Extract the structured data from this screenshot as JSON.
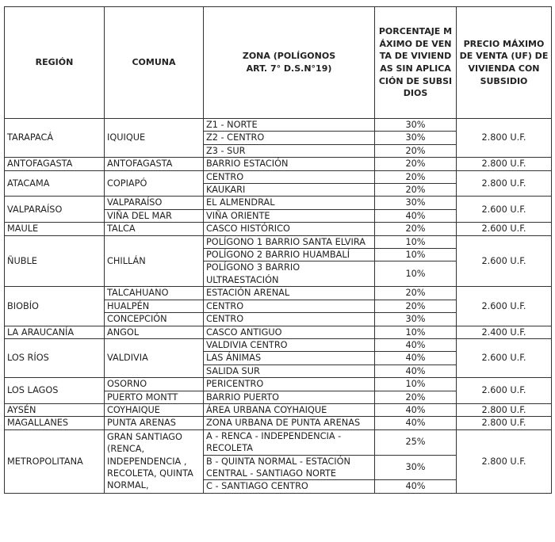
{
  "headers": {
    "region": "REGIÓN",
    "comuna": "COMUNA",
    "zona": "ZONA (POLÍGONOS ART. 7° D.S.N°19)",
    "porcentaje": "PORCENTAJE MÁXIMO DE VENTA DE VIVIENDAS SIN APLICACIÓN DE SUBSIDIOS",
    "precio": "PRECIO MÁXIMO DE VENTA (UF) DE VIVIENDA CON SUBSIDIO"
  },
  "rows": [
    {
      "region": "TARAPACÁ",
      "precio": "2.800 U.F.",
      "comunas": [
        {
          "name": "IQUIQUE",
          "zonas": [
            {
              "zona": "Z1 - NORTE",
              "pct": "30%"
            },
            {
              "zona": "Z2 - CENTRO",
              "pct": "30%"
            },
            {
              "zona": "Z3 - SUR",
              "pct": "20%"
            }
          ]
        }
      ]
    },
    {
      "region": "ANTOFAGASTA",
      "precio": "2.800 U.F.",
      "comunas": [
        {
          "name": "ANTOFAGASTA",
          "zonas": [
            {
              "zona": "BARRIO ESTACIÓN",
              "pct": "20%"
            }
          ]
        }
      ]
    },
    {
      "region": "ATACAMA",
      "precio": "2.800 U.F.",
      "comunas": [
        {
          "name": "COPIAPÓ",
          "zonas": [
            {
              "zona": "CENTRO",
              "pct": "20%"
            },
            {
              "zona": "KAUKARI",
              "pct": "20%"
            }
          ]
        }
      ]
    },
    {
      "region": "VALPARAÍSO",
      "precio": "2.600 U.F.",
      "comunas": [
        {
          "name": "VALPARAÍSO",
          "zonas": [
            {
              "zona": "EL ALMENDRAL",
              "pct": "30%"
            }
          ]
        },
        {
          "name": "VIÑA DEL MAR",
          "zonas": [
            {
              "zona": "VIÑA ORIENTE",
              "pct": "40%"
            }
          ]
        }
      ]
    },
    {
      "region": "MAULE",
      "precio": "2.600 U.F.",
      "comunas": [
        {
          "name": "TALCA",
          "zonas": [
            {
              "zona": "CASCO HISTÓRICO",
              "pct": "20%"
            }
          ]
        }
      ]
    },
    {
      "region": "ÑUBLE",
      "precio": "2.600 U.F.",
      "comunas": [
        {
          "name": "CHILLÁN",
          "zonas": [
            {
              "zona": "POLÍGONO 1 BARRIO SANTA ELVIRA",
              "pct": "10%"
            },
            {
              "zona": "POLÍGONO 2 BARRIO HUAMBALÍ",
              "pct": "10%"
            },
            {
              "zona": "POLÍGONO 3 BARRIO ULTRAESTACIÓN",
              "pct": "10%"
            }
          ]
        }
      ]
    },
    {
      "region": "BIOBÍO",
      "precio": "2.600 U.F.",
      "comunas": [
        {
          "name": "TALCAHUANO",
          "zonas": [
            {
              "zona": "ESTACIÓN ARENAL",
              "pct": "20%"
            }
          ]
        },
        {
          "name": "HUALPÉN",
          "zonas": [
            {
              "zona": "CENTRO",
              "pct": "20%"
            }
          ]
        },
        {
          "name": "CONCEPCIÓN",
          "zonas": [
            {
              "zona": "CENTRO",
              "pct": "30%"
            }
          ]
        }
      ]
    },
    {
      "region": "LA ARAUCANÍA",
      "precio": "2.400 U.F.",
      "comunas": [
        {
          "name": "ANGOL",
          "zonas": [
            {
              "zona": "CASCO ANTIGUO",
              "pct": "10%"
            }
          ]
        }
      ]
    },
    {
      "region": "LOS RÍOS",
      "precio": "2.600 U.F.",
      "comunas": [
        {
          "name": "VALDIVIA",
          "zonas": [
            {
              "zona": "VALDIVIA CENTRO",
              "pct": "40%"
            },
            {
              "zona": "LAS ÁNIMAS",
              "pct": "40%"
            },
            {
              "zona": "SALIDA SUR",
              "pct": "40%"
            }
          ]
        }
      ]
    },
    {
      "region": "LOS LAGOS",
      "precio": "2.600 U.F.",
      "comunas": [
        {
          "name": "OSORNO",
          "zonas": [
            {
              "zona": "PERICENTRO",
              "pct": "10%"
            }
          ]
        },
        {
          "name": "PUERTO MONTT",
          "zonas": [
            {
              "zona": "BARRIO PUERTO",
              "pct": "20%"
            }
          ]
        }
      ]
    },
    {
      "region": "AYSÉN",
      "precio": "2.800 U.F.",
      "comunas": [
        {
          "name": "COYHAIQUE",
          "zonas": [
            {
              "zona": "ÁREA URBANA COYHAIQUE",
              "pct": "40%"
            }
          ]
        }
      ]
    },
    {
      "region": "MAGALLANES",
      "precio": "2.800 U.F.",
      "comunas": [
        {
          "name": "PUNTA ARENAS",
          "zonas": [
            {
              "zona": "ZONA URBANA DE PUNTA ARENAS",
              "pct": "40%"
            }
          ]
        }
      ]
    },
    {
      "region": "METROPOLITANA",
      "precio": "2.800 U.F.",
      "comunas": [
        {
          "name": "GRAN SANTIAGO (RENCA, INDEPENDENCIA , RECOLETA, QUINTA NORMAL,",
          "zonas": [
            {
              "zona": "A - RENCA - INDEPENDENCIA - RECOLETA",
              "pct": "25%"
            },
            {
              "zona": "B - QUINTA NORMAL - ESTACIÓN CENTRAL - SANTIAGO NORTE",
              "pct": "30%"
            },
            {
              "zona": "C - SANTIAGO CENTRO",
              "pct": "40%"
            }
          ]
        }
      ]
    }
  ]
}
